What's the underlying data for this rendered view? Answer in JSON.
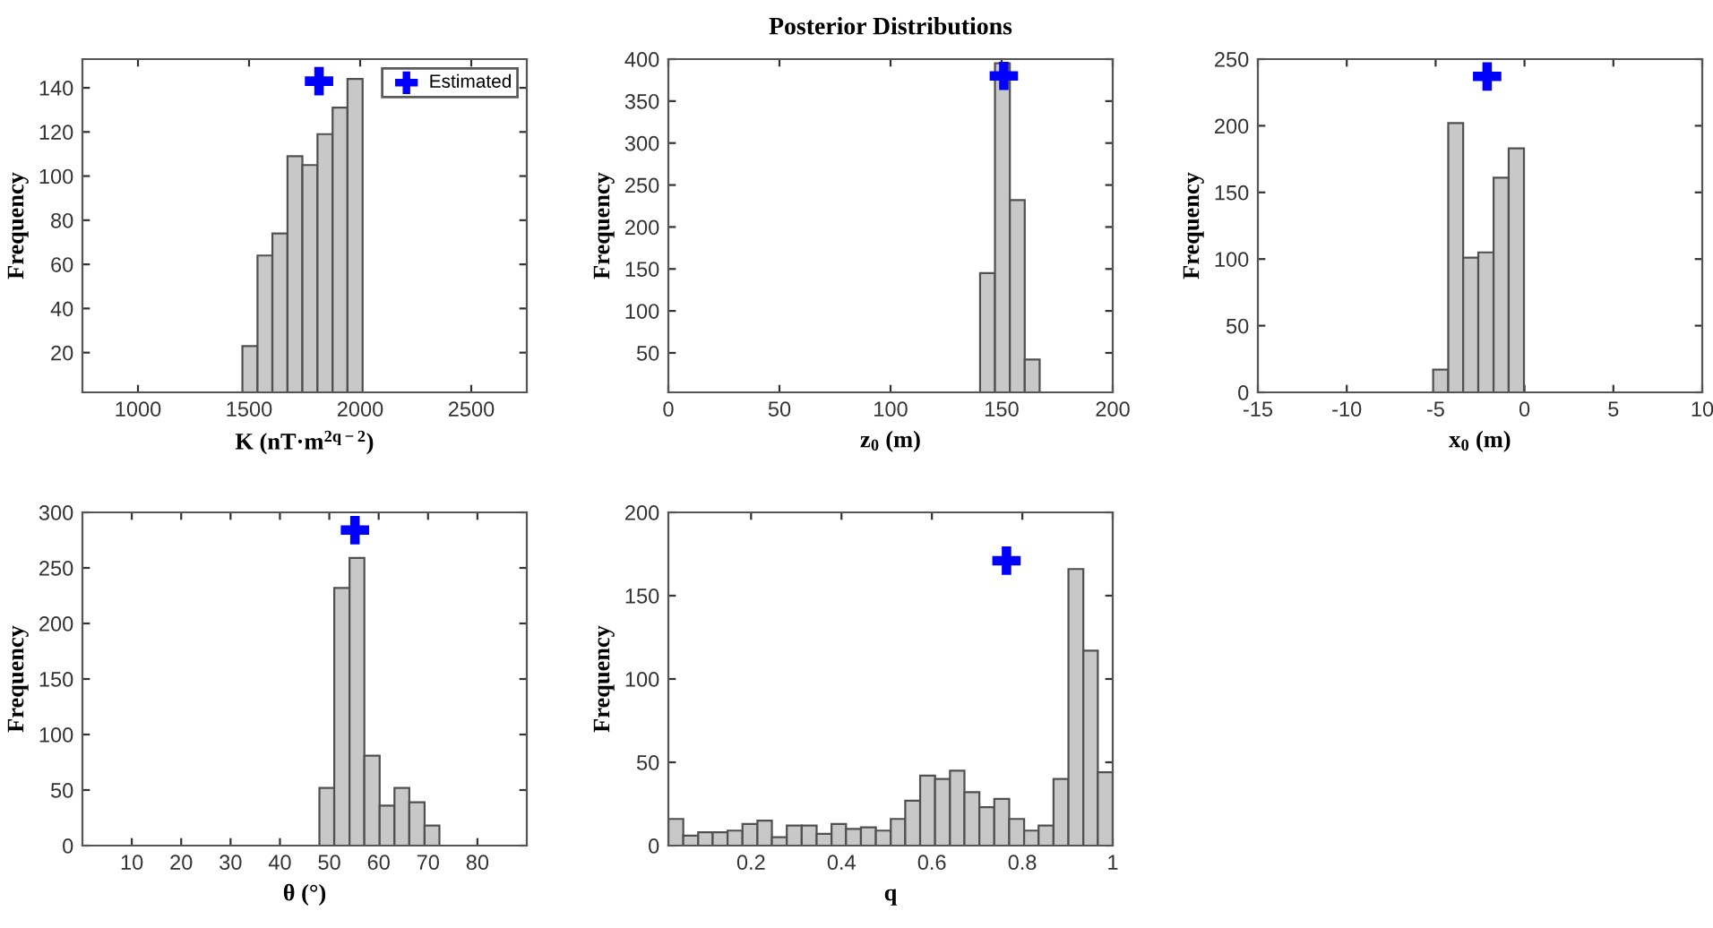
{
  "chart_data": [
    {
      "type": "histogram",
      "xlabel": "K (nT·m$^{2q−2}$)",
      "ylabel": "Frequency",
      "color": "#c8c8c8",
      "bins": [
        1470,
        1538,
        1605,
        1673,
        1740,
        1808,
        1876,
        1943,
        2011
      ],
      "values": [
        23,
        64,
        74,
        109,
        105,
        119,
        131,
        144
      ],
      "xlim": [
        750,
        2750
      ],
      "ylim": [
        2,
        153
      ],
      "xticks": [
        1000,
        1500,
        2000,
        2500
      ],
      "yticks": [
        20,
        40,
        60,
        80,
        100,
        120,
        140
      ],
      "legend": "top right",
      "series": [
        {
          "type": "scatter",
          "name": "Estimated",
          "color": "#0000ff",
          "marker": "cross",
          "x": [
            1815
          ],
          "values": [
            143
          ]
        }
      ]
    },
    {
      "type": "histogram",
      "title": "Posterior Distributions",
      "xlabel": "z$_{0}$ (m)",
      "ylabel": "Frequency",
      "color": "#c8c8c8",
      "bins": [
        140.3,
        147,
        153.7,
        160.4,
        167.1
      ],
      "values": [
        145,
        395,
        232,
        42
      ],
      "xlim": [
        0,
        200
      ],
      "ylim": [
        3,
        400
      ],
      "xticks": [
        0,
        50,
        100,
        150,
        200
      ],
      "yticks": [
        50,
        100,
        150,
        200,
        250,
        300,
        350,
        400
      ],
      "series": [
        {
          "type": "scatter",
          "color": "#0000ff",
          "marker": "cross",
          "x": [
            151
          ],
          "values": [
            380
          ]
        }
      ]
    },
    {
      "type": "histogram",
      "xlabel": "x$_{0}$ (m)",
      "ylabel": "Frequency",
      "color": "#c8c8c8",
      "bins": [
        -5.14,
        -4.29,
        -3.45,
        -2.6,
        -1.74,
        -0.89,
        -0.03
      ],
      "values": [
        17,
        202,
        101,
        105,
        161,
        183
      ],
      "xlim": [
        -15,
        10
      ],
      "ylim": [
        0,
        250
      ],
      "xticks": [
        -15,
        -10,
        -5,
        0,
        5,
        10
      ],
      "yticks": [
        0,
        50,
        100,
        150,
        200,
        250
      ],
      "series": [
        {
          "type": "scatter",
          "color": "#0000ff",
          "marker": "cross",
          "x": [
            -2.1
          ],
          "values": [
            237
          ]
        }
      ]
    },
    {
      "type": "histogram",
      "xlabel": "θ (°)",
      "ylabel": "Frequency",
      "color": "#c8c8c8",
      "bins": [
        48,
        51,
        54.1,
        57.1,
        60.2,
        63.2,
        66.2,
        69.3,
        72.3
      ],
      "values": [
        52,
        232,
        259,
        81,
        36,
        52,
        39,
        18
      ],
      "xlim": [
        0,
        90
      ],
      "ylim": [
        0,
        300
      ],
      "xticks": [
        10,
        20,
        30,
        40,
        50,
        60,
        70,
        80
      ],
      "yticks": [
        0,
        50,
        100,
        150,
        200,
        250,
        300
      ],
      "series": [
        {
          "type": "scatter",
          "color": "#0000ff",
          "marker": "cross",
          "x": [
            55.2
          ],
          "values": [
            284
          ]
        }
      ]
    },
    {
      "type": "histogram",
      "xlabel": "q",
      "ylabel": "Frequency",
      "color": "#c8c8c8",
      "bins": [
        0.017,
        0.05,
        0.083,
        0.115,
        0.148,
        0.181,
        0.214,
        0.246,
        0.279,
        0.312,
        0.345,
        0.378,
        0.41,
        0.443,
        0.476,
        0.509,
        0.541,
        0.574,
        0.607,
        0.64,
        0.672,
        0.705,
        0.738,
        0.771,
        0.804,
        0.836,
        0.869,
        0.902,
        0.935,
        0.967,
        1.0
      ],
      "values": [
        16,
        6,
        8,
        8,
        9,
        13,
        15,
        5,
        12,
        12,
        7,
        13,
        10,
        11,
        9,
        16,
        27,
        42,
        40,
        45,
        32,
        23,
        28,
        16,
        9,
        12,
        40,
        166,
        117,
        44
      ],
      "xlim": [
        0.017,
        1.0
      ],
      "ylim": [
        0,
        200
      ],
      "xticks": [
        {
          "value": 0.2,
          "label": "0.2"
        },
        {
          "value": 0.4,
          "label": "0.4"
        },
        {
          "value": 0.6,
          "label": "0.6"
        },
        {
          "value": 0.8,
          "label": "0.8"
        },
        1
      ],
      "yticks": [
        0,
        50,
        100,
        150,
        200
      ],
      "series": [
        {
          "type": "scatter",
          "color": "#0000ff",
          "marker": "cross",
          "x": [
            0.765
          ],
          "values": [
            171
          ]
        }
      ]
    }
  ]
}
